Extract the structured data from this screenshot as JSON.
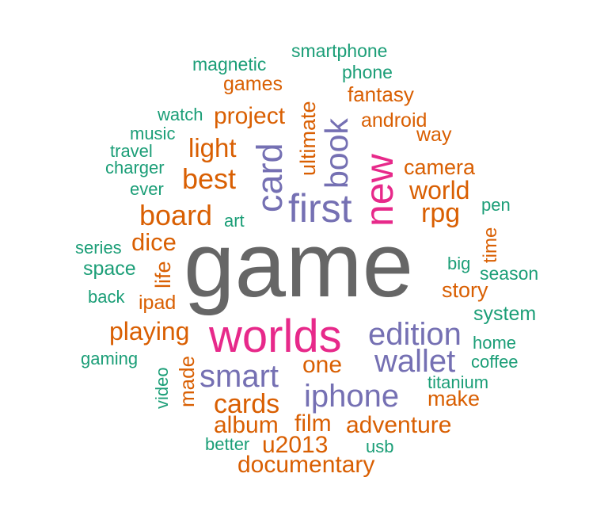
{
  "cloud": {
    "colors": {
      "gray": "#666666",
      "magenta": "#e7298a",
      "purple": "#7570b3",
      "orange": "#d95f02",
      "teal": "#1b9e77"
    },
    "words": [
      {
        "text": "game",
        "color": "gray",
        "vertical": false
      },
      {
        "text": "worlds",
        "color": "magenta",
        "vertical": false
      },
      {
        "text": "new",
        "color": "magenta",
        "vertical": true
      },
      {
        "text": "first",
        "color": "purple",
        "vertical": false
      },
      {
        "text": "card",
        "color": "purple",
        "vertical": true
      },
      {
        "text": "book",
        "color": "purple",
        "vertical": true
      },
      {
        "text": "edition",
        "color": "purple",
        "vertical": false
      },
      {
        "text": "wallet",
        "color": "purple",
        "vertical": false
      },
      {
        "text": "smart",
        "color": "purple",
        "vertical": false
      },
      {
        "text": "iphone",
        "color": "purple",
        "vertical": false
      },
      {
        "text": "ultimate",
        "color": "orange",
        "vertical": true
      },
      {
        "text": "project",
        "color": "orange",
        "vertical": false
      },
      {
        "text": "games",
        "color": "orange",
        "vertical": false
      },
      {
        "text": "fantasy",
        "color": "orange",
        "vertical": false
      },
      {
        "text": "android",
        "color": "orange",
        "vertical": false
      },
      {
        "text": "way",
        "color": "orange",
        "vertical": false
      },
      {
        "text": "light",
        "color": "orange",
        "vertical": false
      },
      {
        "text": "best",
        "color": "orange",
        "vertical": false
      },
      {
        "text": "camera",
        "color": "orange",
        "vertical": false
      },
      {
        "text": "world",
        "color": "orange",
        "vertical": false
      },
      {
        "text": "rpg",
        "color": "orange",
        "vertical": false
      },
      {
        "text": "board",
        "color": "orange",
        "vertical": false
      },
      {
        "text": "dice",
        "color": "orange",
        "vertical": false
      },
      {
        "text": "life",
        "color": "orange",
        "vertical": true
      },
      {
        "text": "time",
        "color": "orange",
        "vertical": true
      },
      {
        "text": "story",
        "color": "orange",
        "vertical": false
      },
      {
        "text": "ipad",
        "color": "orange",
        "vertical": false
      },
      {
        "text": "playing",
        "color": "orange",
        "vertical": false
      },
      {
        "text": "made",
        "color": "orange",
        "vertical": true
      },
      {
        "text": "one",
        "color": "orange",
        "vertical": false
      },
      {
        "text": "cards",
        "color": "orange",
        "vertical": false
      },
      {
        "text": "make",
        "color": "orange",
        "vertical": false
      },
      {
        "text": "album",
        "color": "orange",
        "vertical": false
      },
      {
        "text": "film",
        "color": "orange",
        "vertical": false
      },
      {
        "text": "adventure",
        "color": "orange",
        "vertical": false
      },
      {
        "text": "u2013",
        "color": "orange",
        "vertical": false
      },
      {
        "text": "documentary",
        "color": "orange",
        "vertical": false
      },
      {
        "text": "magnetic",
        "color": "teal",
        "vertical": false
      },
      {
        "text": "smartphone",
        "color": "teal",
        "vertical": false
      },
      {
        "text": "phone",
        "color": "teal",
        "vertical": false
      },
      {
        "text": "watch",
        "color": "teal",
        "vertical": false
      },
      {
        "text": "music",
        "color": "teal",
        "vertical": false
      },
      {
        "text": "travel",
        "color": "teal",
        "vertical": false
      },
      {
        "text": "charger",
        "color": "teal",
        "vertical": false
      },
      {
        "text": "ever",
        "color": "teal",
        "vertical": false
      },
      {
        "text": "art",
        "color": "teal",
        "vertical": false
      },
      {
        "text": "pen",
        "color": "teal",
        "vertical": false
      },
      {
        "text": "series",
        "color": "teal",
        "vertical": false
      },
      {
        "text": "space",
        "color": "teal",
        "vertical": false
      },
      {
        "text": "big",
        "color": "teal",
        "vertical": false
      },
      {
        "text": "season",
        "color": "teal",
        "vertical": false
      },
      {
        "text": "back",
        "color": "teal",
        "vertical": false
      },
      {
        "text": "system",
        "color": "teal",
        "vertical": false
      },
      {
        "text": "home",
        "color": "teal",
        "vertical": false
      },
      {
        "text": "coffee",
        "color": "teal",
        "vertical": false
      },
      {
        "text": "gaming",
        "color": "teal",
        "vertical": false
      },
      {
        "text": "video",
        "color": "teal",
        "vertical": true
      },
      {
        "text": "titanium",
        "color": "teal",
        "vertical": false
      },
      {
        "text": "better",
        "color": "teal",
        "vertical": false
      },
      {
        "text": "usb",
        "color": "teal",
        "vertical": false
      }
    ]
  }
}
